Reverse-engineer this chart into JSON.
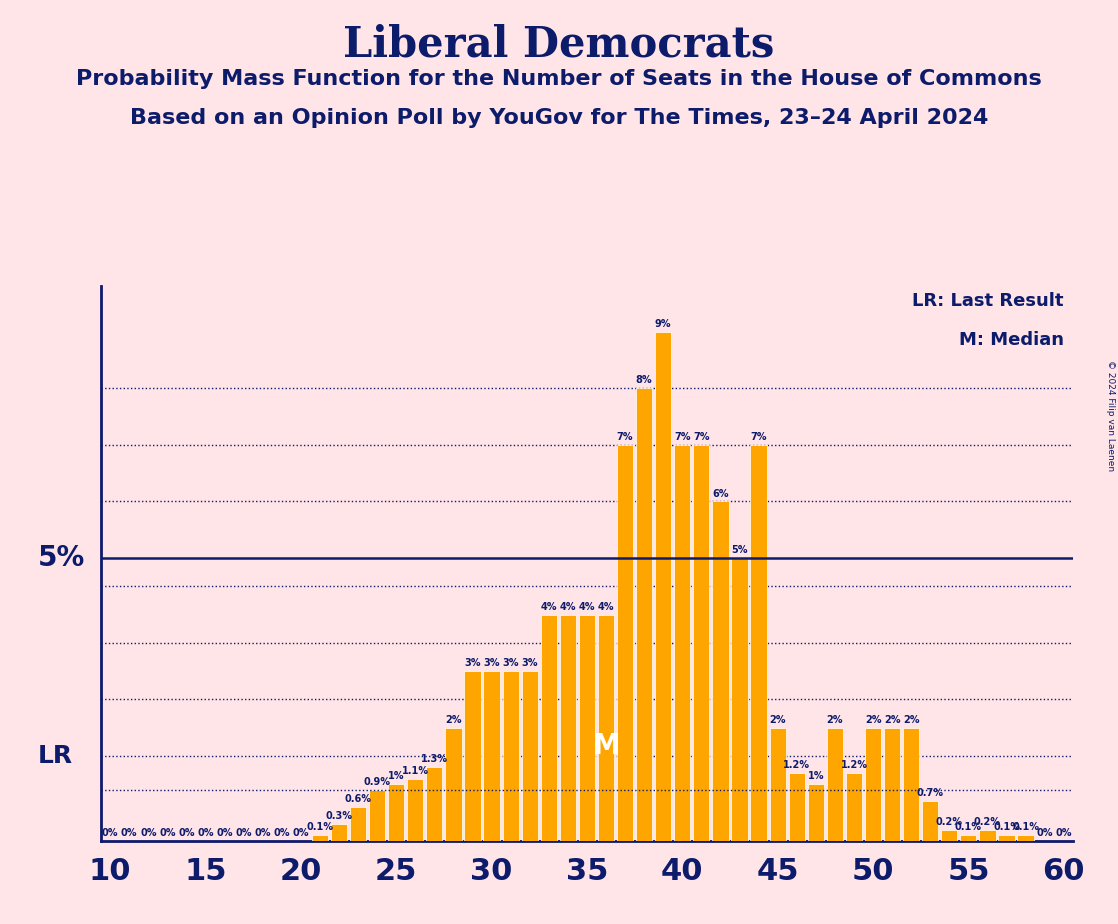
{
  "title": "Liberal Democrats",
  "subtitle1": "Probability Mass Function for the Number of Seats in the House of Commons",
  "subtitle2": "Based on an Opinion Poll by YouGov for The Times, 23–24 April 2024",
  "copyright": "© 2024 Filip van Laenen",
  "seats": [
    10,
    11,
    12,
    13,
    14,
    15,
    16,
    17,
    18,
    19,
    20,
    21,
    22,
    23,
    24,
    25,
    26,
    27,
    28,
    29,
    30,
    31,
    32,
    33,
    34,
    35,
    36,
    37,
    38,
    39,
    40,
    41,
    42,
    43,
    44,
    45,
    46,
    47,
    48,
    49,
    50,
    51,
    52,
    53,
    54,
    55,
    56,
    57,
    58,
    59,
    60
  ],
  "probs": [
    0.0,
    0.0,
    0.0,
    0.0,
    0.0,
    0.0,
    0.0,
    0.0,
    0.0,
    0.0,
    0.0,
    0.1,
    0.3,
    0.6,
    0.9,
    1.0,
    1.1,
    1.3,
    2.0,
    3.0,
    3.0,
    3.0,
    3.0,
    4.0,
    4.0,
    4.0,
    4.0,
    7.0,
    8.0,
    9.0,
    7.0,
    7.0,
    6.0,
    5.0,
    7.0,
    2.0,
    1.2,
    1.0,
    2.0,
    1.2,
    2.0,
    2.0,
    2.0,
    0.7,
    0.2,
    0.1,
    0.2,
    0.1,
    0.1,
    0.0,
    0.0
  ],
  "bar_color": "#FFA500",
  "bar_edge_color": "#FFFFFF",
  "background_color": "#FFE4E8",
  "title_color": "#0D1B6B",
  "text_color": "#0D1B6B",
  "five_pct_line_color": "#0D1B6B",
  "dotted_line_color": "#0D1B6B",
  "lr_seat": 11,
  "median_seat": 36,
  "xlim": [
    9.5,
    60.5
  ],
  "ylim": [
    0,
    9.8
  ],
  "xlabel_ticks": [
    10,
    15,
    20,
    25,
    30,
    35,
    40,
    45,
    50,
    55,
    60
  ],
  "five_pct": 5.0,
  "lr_pct": 0.9,
  "dotted_y_positions": [
    1.5,
    2.5,
    3.5,
    4.5,
    6.0,
    7.0,
    8.0
  ],
  "label_fontsize": 7.0,
  "title_fontsize": 30,
  "subtitle_fontsize": 16,
  "axis_tick_fontsize": 22
}
